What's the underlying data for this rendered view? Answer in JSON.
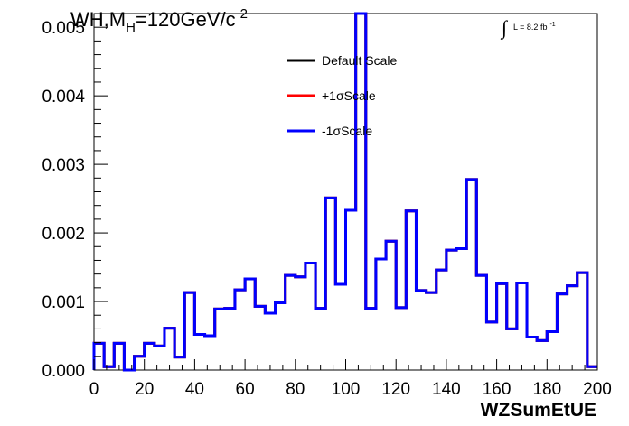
{
  "chart_data": {
    "type": "line",
    "style": "step-histogram",
    "title_parts": {
      "main": "WH,M",
      "subscript": "H",
      "rest": "=120GeV/c",
      "superscript": "2"
    },
    "lumi_label": {
      "integral": "∫",
      "text": "L = 8.2 fb",
      "superscript": "-1"
    },
    "xlabel": "WZSumEtUE",
    "ylabel": "",
    "xlim": [
      0,
      200
    ],
    "ylim": [
      0,
      0.0052
    ],
    "x_ticks": [
      "0",
      "20",
      "40",
      "60",
      "80",
      "100",
      "120",
      "140",
      "160",
      "180",
      "200"
    ],
    "y_ticks": [
      "0.000",
      "0.001",
      "0.002",
      "0.003",
      "0.004",
      "0.005"
    ],
    "legend": {
      "placement": "top-center"
    },
    "bin_edges": [
      0,
      4,
      8,
      12,
      16,
      20,
      24,
      28,
      32,
      36,
      40,
      44,
      48,
      52,
      56,
      60,
      64,
      68,
      72,
      76,
      80,
      84,
      88,
      92,
      96,
      100,
      104,
      108,
      112,
      116,
      120,
      124,
      128,
      132,
      136,
      140,
      144,
      148,
      152,
      156,
      160,
      164,
      168,
      172,
      176,
      180,
      184,
      188,
      192,
      196,
      200
    ],
    "series": [
      {
        "name": "Default Scale",
        "color": "#000000",
        "values": [
          0.00039,
          5e-05,
          0.00039,
          0.0,
          0.0002,
          0.00039,
          0.00035,
          0.00061,
          0.00019,
          0.00113,
          0.00052,
          0.0005,
          0.00089,
          0.0009,
          0.00117,
          0.00133,
          0.00093,
          0.00083,
          0.00098,
          0.00138,
          0.00136,
          0.00156,
          0.0009,
          0.00251,
          0.00125,
          0.00233,
          0.0052,
          0.0009,
          0.00162,
          0.00188,
          0.00091,
          0.00232,
          0.00116,
          0.00113,
          0.00146,
          0.00175,
          0.00177,
          0.00278,
          0.00138,
          0.0007,
          0.00126,
          0.0006,
          0.00127,
          0.00048,
          0.00043,
          0.00056,
          0.00111,
          0.00123,
          0.00142,
          5e-05
        ]
      },
      {
        "name": "+1σScale",
        "color": "#ff0000",
        "values": [
          0.00039,
          5e-05,
          0.00039,
          0.0,
          0.0002,
          0.00039,
          0.00035,
          0.00061,
          0.00019,
          0.00113,
          0.00052,
          0.0005,
          0.00089,
          0.0009,
          0.00117,
          0.00133,
          0.00093,
          0.00083,
          0.00098,
          0.00138,
          0.00136,
          0.00156,
          0.0009,
          0.00251,
          0.00125,
          0.00233,
          0.0052,
          0.0009,
          0.00162,
          0.00188,
          0.00091,
          0.00232,
          0.00116,
          0.00113,
          0.00146,
          0.00175,
          0.00177,
          0.00278,
          0.00138,
          0.0007,
          0.00126,
          0.0006,
          0.00127,
          0.00048,
          0.00043,
          0.00056,
          0.00111,
          0.00123,
          0.00142,
          5e-05
        ]
      },
      {
        "name": "-1σScale",
        "color": "#0000ff",
        "values": [
          0.00039,
          5e-05,
          0.00039,
          0.0,
          0.0002,
          0.00039,
          0.00035,
          0.00061,
          0.00019,
          0.00113,
          0.00052,
          0.0005,
          0.00089,
          0.0009,
          0.00117,
          0.00133,
          0.00093,
          0.00083,
          0.00098,
          0.00138,
          0.00136,
          0.00156,
          0.0009,
          0.00251,
          0.00125,
          0.00233,
          0.0052,
          0.0009,
          0.00162,
          0.00188,
          0.00091,
          0.00232,
          0.00116,
          0.00113,
          0.00146,
          0.00175,
          0.00177,
          0.00278,
          0.00138,
          0.0007,
          0.00126,
          0.0006,
          0.00127,
          0.00048,
          0.00043,
          0.00056,
          0.00111,
          0.00123,
          0.00142,
          5e-05
        ]
      }
    ]
  }
}
